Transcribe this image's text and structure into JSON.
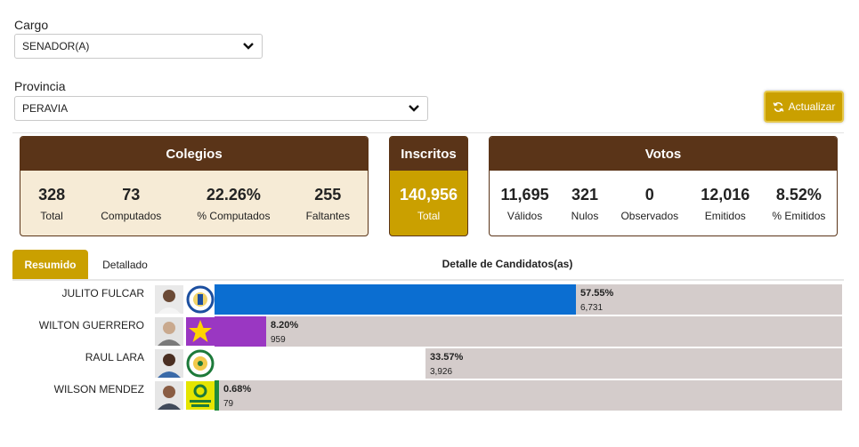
{
  "filters": {
    "cargo_label": "Cargo",
    "cargo_value": "SENADOR(A)",
    "provincia_label": "Provincia",
    "provincia_value": "PERAVIA",
    "update_label": "Actualizar"
  },
  "colegios": {
    "title": "Colegios",
    "stats": [
      {
        "value": "328",
        "label": "Total"
      },
      {
        "value": "73",
        "label": "Computados"
      },
      {
        "value": "22.26%",
        "label": "% Computados"
      },
      {
        "value": "255",
        "label": "Faltantes"
      }
    ]
  },
  "inscritos": {
    "title": "Inscritos",
    "value": "140,956",
    "label": "Total"
  },
  "votos": {
    "title": "Votos",
    "stats": [
      {
        "value": "11,695",
        "label": "Válidos"
      },
      {
        "value": "321",
        "label": "Nulos"
      },
      {
        "value": "0",
        "label": "Observados"
      },
      {
        "value": "12,016",
        "label": "Emitidos"
      },
      {
        "value": "8.52%",
        "label": "% Emitidos"
      }
    ]
  },
  "tabs": {
    "resumido": "Resumido",
    "detallado": "Detallado",
    "detail_title": "Detalle de Candidatos(as)"
  },
  "candidates": [
    {
      "name": "JULITO FULCAR",
      "percent": "57.55%",
      "votes": "6,731",
      "share": 0.5755,
      "color": "#0b6ed1",
      "logo": "party-seal-blue-icon"
    },
    {
      "name": "WILTON GUERRERO",
      "percent": "8.20%",
      "votes": "959",
      "share": 0.082,
      "color": "#9a37c2",
      "logo": "purple-star-icon"
    },
    {
      "name": "RAUL LARA",
      "percent": "33.57%",
      "votes": "3,926",
      "share": 0.3357,
      "color": "#ffffff",
      "logo": "party-seal-green-icon"
    },
    {
      "name": "WILSON MENDEZ",
      "percent": "0.68%",
      "votes": "79",
      "share": 0.0068,
      "color": "#1f8a3a",
      "logo": "frente-amplio-logo-icon"
    }
  ],
  "colors": {
    "brown": "#5a3418",
    "gold": "#caa000",
    "beige": "#f6ebd6"
  }
}
